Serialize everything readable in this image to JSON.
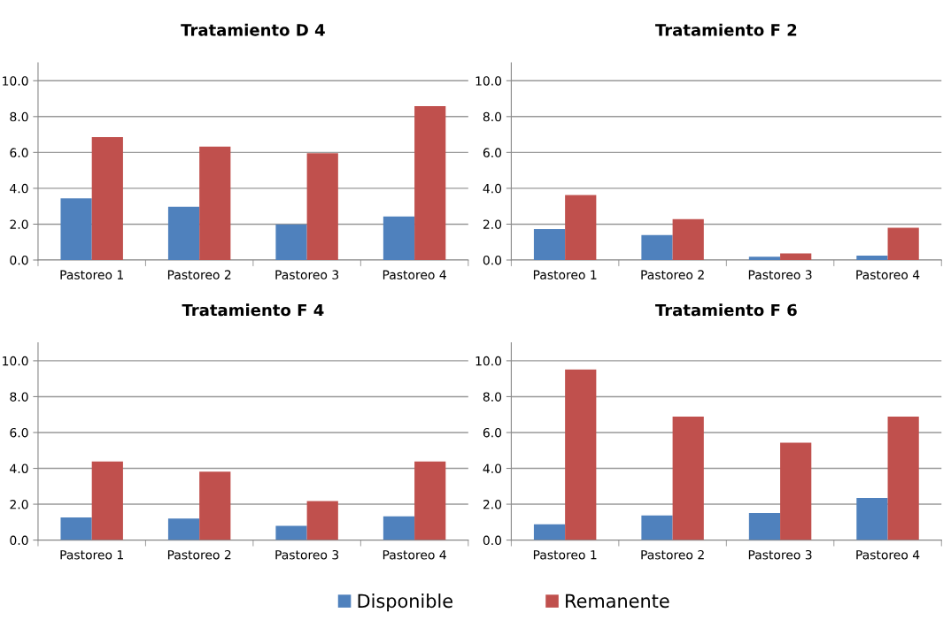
{
  "chart_data": [
    {
      "type": "bar",
      "title": "Tratamiento D 4",
      "categories": [
        "Pastoreo 1",
        "Pastoreo 2",
        "Pastoreo 3",
        "Pastoreo 4"
      ],
      "ylim": [
        0,
        11
      ],
      "yticks": [
        {
          "value": 0,
          "label": "0.0"
        },
        {
          "value": 2,
          "label": "2.0"
        },
        {
          "value": 4,
          "label": "4.0"
        },
        {
          "value": 6,
          "label": "6.0"
        },
        {
          "value": 8,
          "label": "8.0"
        },
        {
          "value": 10,
          "label": "10.0"
        }
      ],
      "grid": "y",
      "legend": false,
      "series": [
        {
          "color": "#4f81bd",
          "values": [
            3.44,
            2.97,
            1.98,
            2.43
          ]
        },
        {
          "color": "#c0504d",
          "values": [
            6.86,
            6.32,
            5.96,
            8.58
          ]
        }
      ]
    },
    {
      "type": "bar",
      "title": "Tratamiento F 2",
      "categories": [
        "Pastoreo 1",
        "Pastoreo 2",
        "Pastoreo 3",
        "Pastoreo 4"
      ],
      "ylim": [
        0,
        11
      ],
      "yticks": [
        {
          "value": 0,
          "label": "0.0"
        },
        {
          "value": 2,
          "label": "2.0"
        },
        {
          "value": 4,
          "label": "4.0"
        },
        {
          "value": 6,
          "label": "6.0"
        },
        {
          "value": 8,
          "label": "8.0"
        },
        {
          "value": 10,
          "label": "10.0"
        }
      ],
      "grid": "y",
      "legend": false,
      "series": [
        {
          "color": "#4f81bd",
          "values": [
            1.73,
            1.39,
            0.18,
            0.24
          ]
        },
        {
          "color": "#c0504d",
          "values": [
            3.63,
            2.28,
            0.37,
            1.8
          ]
        }
      ]
    },
    {
      "type": "bar",
      "title": "Tratamiento F 4",
      "categories": [
        "Pastoreo 1",
        "Pastoreo 2",
        "Pastoreo 3",
        "Pastoreo 4"
      ],
      "ylim": [
        0,
        11
      ],
      "yticks": [
        {
          "value": 0,
          "label": "0.0"
        },
        {
          "value": 2,
          "label": "2.0"
        },
        {
          "value": 4,
          "label": "4.0"
        },
        {
          "value": 6,
          "label": "6.0"
        },
        {
          "value": 8,
          "label": "8.0"
        },
        {
          "value": 10,
          "label": "10.0"
        }
      ],
      "grid": "y",
      "legend": false,
      "series": [
        {
          "color": "#4f81bd",
          "values": [
            1.26,
            1.2,
            0.8,
            1.32
          ]
        },
        {
          "color": "#c0504d",
          "values": [
            4.38,
            3.82,
            2.17,
            4.38
          ]
        }
      ]
    },
    {
      "type": "bar",
      "title": "Tratamiento F 6",
      "categories": [
        "Pastoreo 1",
        "Pastoreo 2",
        "Pastoreo 3",
        "Pastoreo 4"
      ],
      "ylim": [
        0,
        11
      ],
      "yticks": [
        {
          "value": 0,
          "label": "0.0"
        },
        {
          "value": 2,
          "label": "2.0"
        },
        {
          "value": 4,
          "label": "4.0"
        },
        {
          "value": 6,
          "label": "6.0"
        },
        {
          "value": 8,
          "label": "8.0"
        },
        {
          "value": 10,
          "label": "10.0"
        }
      ],
      "grid": "y",
      "legend": "bottom",
      "series": [
        {
          "name": "Disponible",
          "color": "#4f81bd",
          "values": [
            0.88,
            1.38,
            1.51,
            2.35
          ]
        },
        {
          "name": "Remanente",
          "color": "#c0504d",
          "values": [
            9.51,
            6.89,
            5.43,
            6.89
          ]
        }
      ]
    }
  ]
}
